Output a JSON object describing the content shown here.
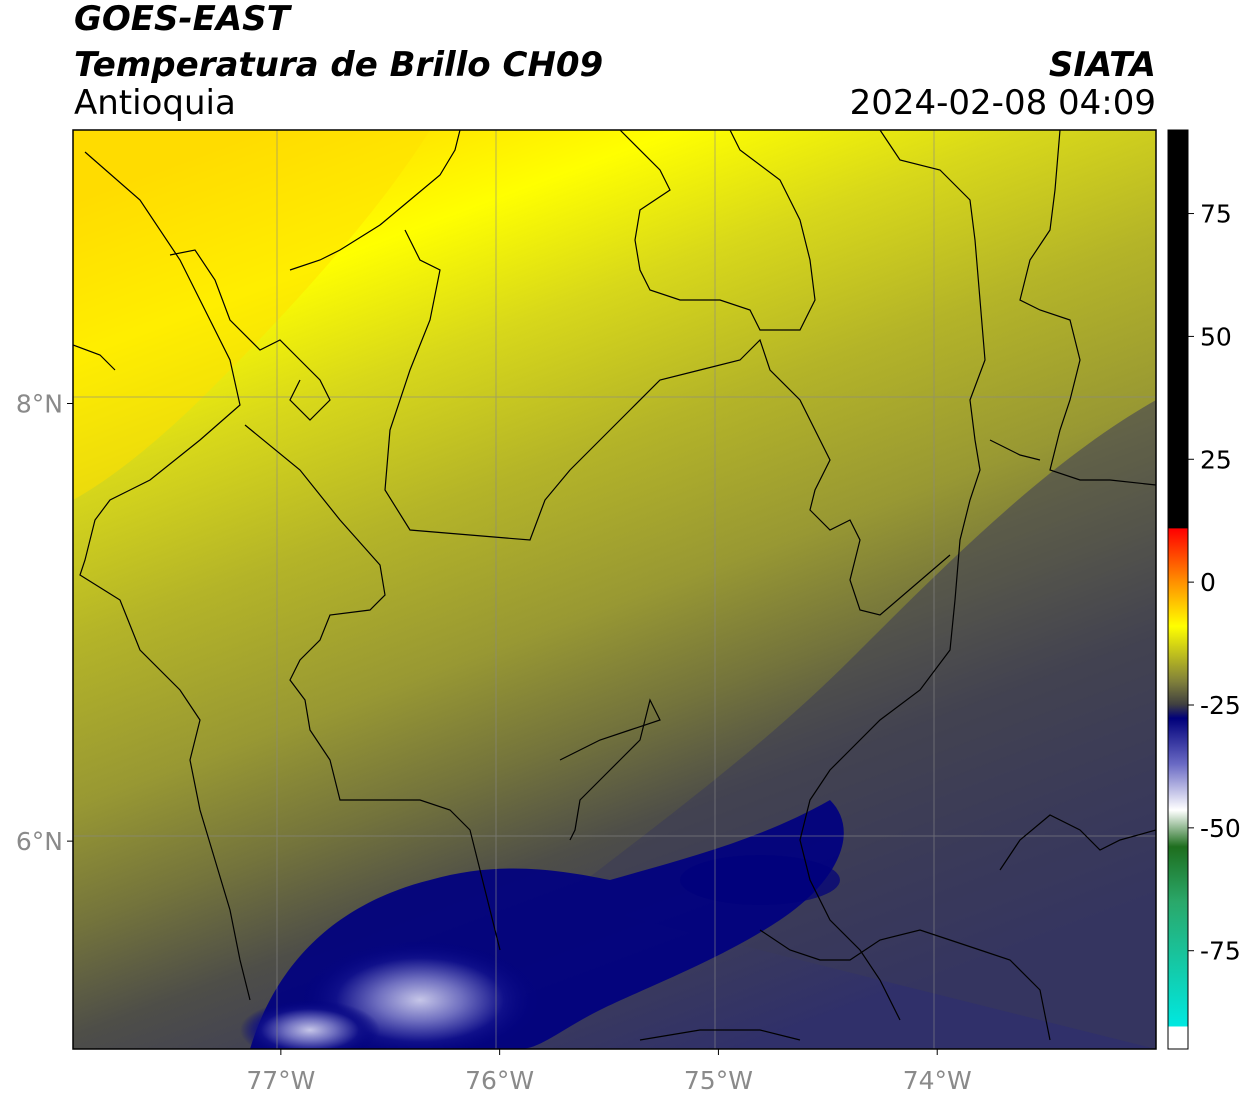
{
  "header": {
    "satellite": "GOES-EAST",
    "product": "Temperatura de Brillo CH09",
    "region": "Antioquia",
    "organization": "SIATA",
    "timestamp": "2024-02-08 04:09"
  },
  "map": {
    "lon_range": [
      -77.95,
      -73.0
    ],
    "lat_range": [
      5.05,
      9.25
    ],
    "lon_ticks": [
      {
        "value": -77,
        "label": "77°W"
      },
      {
        "value": -76,
        "label": "76°W"
      },
      {
        "value": -75,
        "label": "75°W"
      },
      {
        "value": -74,
        "label": "74°W"
      }
    ],
    "lat_ticks": [
      {
        "value": 8,
        "label": "8°N"
      },
      {
        "value": 6,
        "label": "6°N"
      }
    ]
  },
  "colorbar": {
    "ticks": [
      {
        "value": 75,
        "label": "75"
      },
      {
        "value": 50,
        "label": "50"
      },
      {
        "value": 25,
        "label": "25"
      },
      {
        "value": 0,
        "label": "0"
      },
      {
        "value": -25,
        "label": "-25"
      },
      {
        "value": -50,
        "label": "-50"
      },
      {
        "value": -75,
        "label": "-75"
      }
    ],
    "range": [
      -95,
      92
    ],
    "colors": {
      "black": "#000000",
      "red": "#ff0000",
      "orange": "#ff8c00",
      "yellow": "#ffff00",
      "olive": "#80803a",
      "gray": "#404040",
      "navy": "#000080",
      "white": "#ffffff",
      "green": "#228b22",
      "cyan": "#00e5e5"
    }
  }
}
